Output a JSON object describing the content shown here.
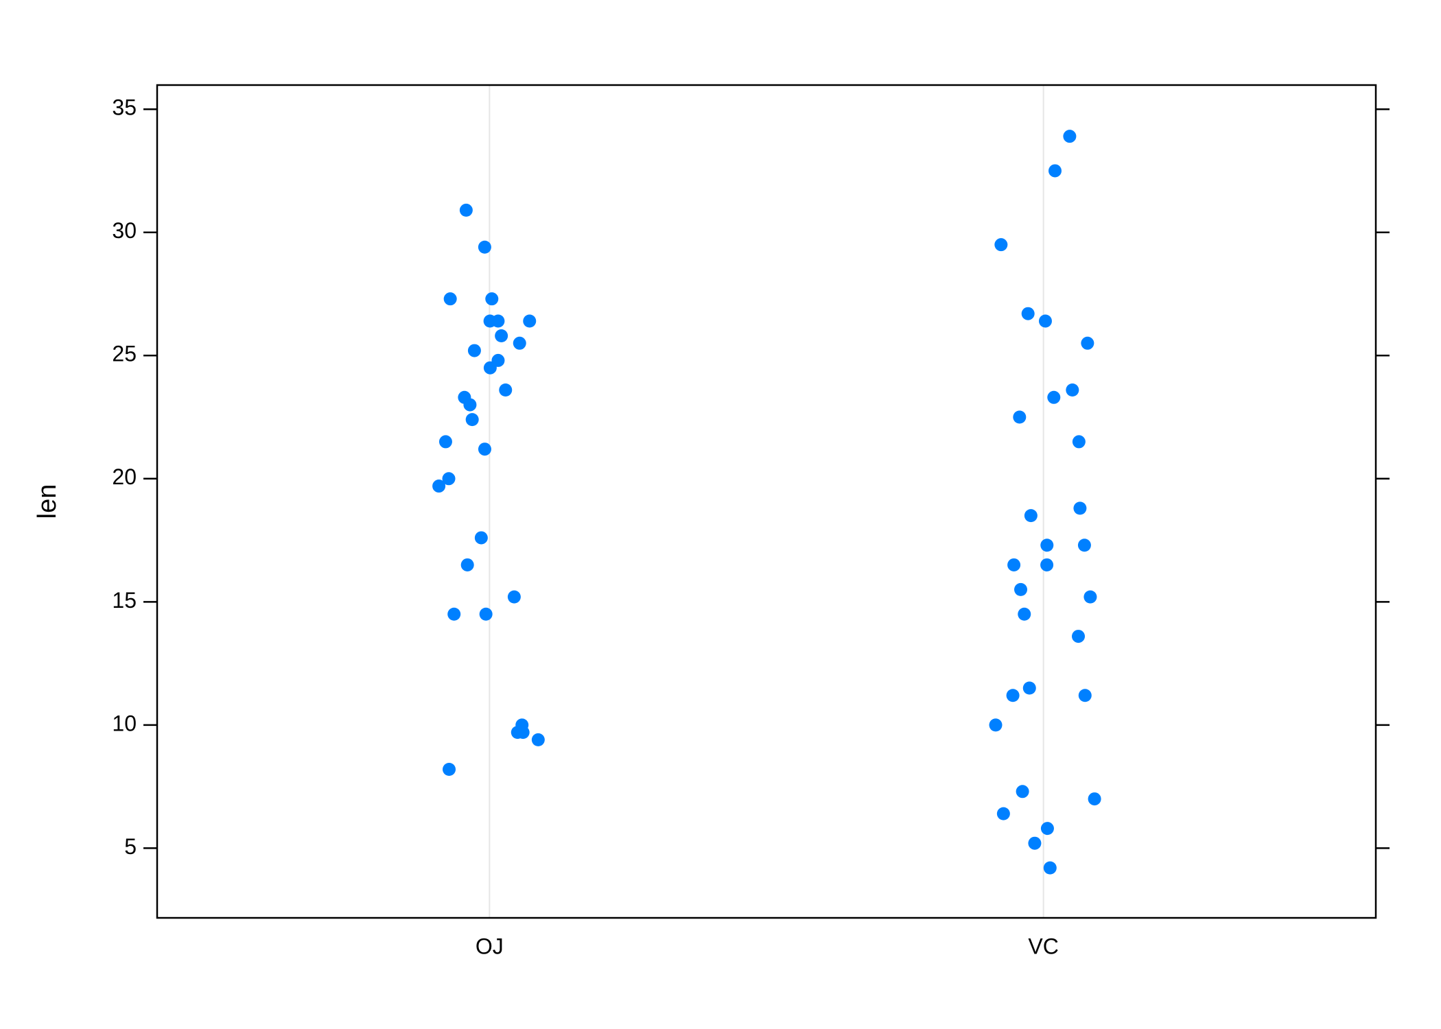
{
  "chart_data": {
    "type": "strip",
    "y_label": "len",
    "categories": [
      "OJ",
      "VC"
    ],
    "values": [
      [
        15.2,
        21.5,
        17.6,
        9.7,
        14.5,
        10.0,
        8.2,
        9.4,
        16.5,
        9.7,
        19.7,
        23.3,
        23.6,
        26.4,
        20.0,
        25.2,
        25.8,
        21.2,
        14.5,
        27.3,
        25.5,
        26.4,
        22.4,
        24.5,
        24.8,
        30.9,
        26.4,
        27.3,
        29.4,
        23.0
      ],
      [
        4.2,
        11.5,
        7.3,
        5.8,
        6.4,
        10.0,
        11.2,
        11.2,
        5.2,
        7.0,
        16.5,
        16.5,
        15.2,
        17.3,
        22.5,
        17.3,
        13.6,
        14.5,
        18.8,
        15.5,
        23.6,
        18.5,
        33.9,
        25.5,
        26.4,
        32.5,
        26.7,
        21.5,
        23.3,
        29.5
      ]
    ],
    "color": "#0080ff",
    "ylim": [
      2.17,
      35.98
    ],
    "yticks": [
      5,
      10,
      15,
      20,
      25,
      30,
      35
    ],
    "grid": true
  }
}
